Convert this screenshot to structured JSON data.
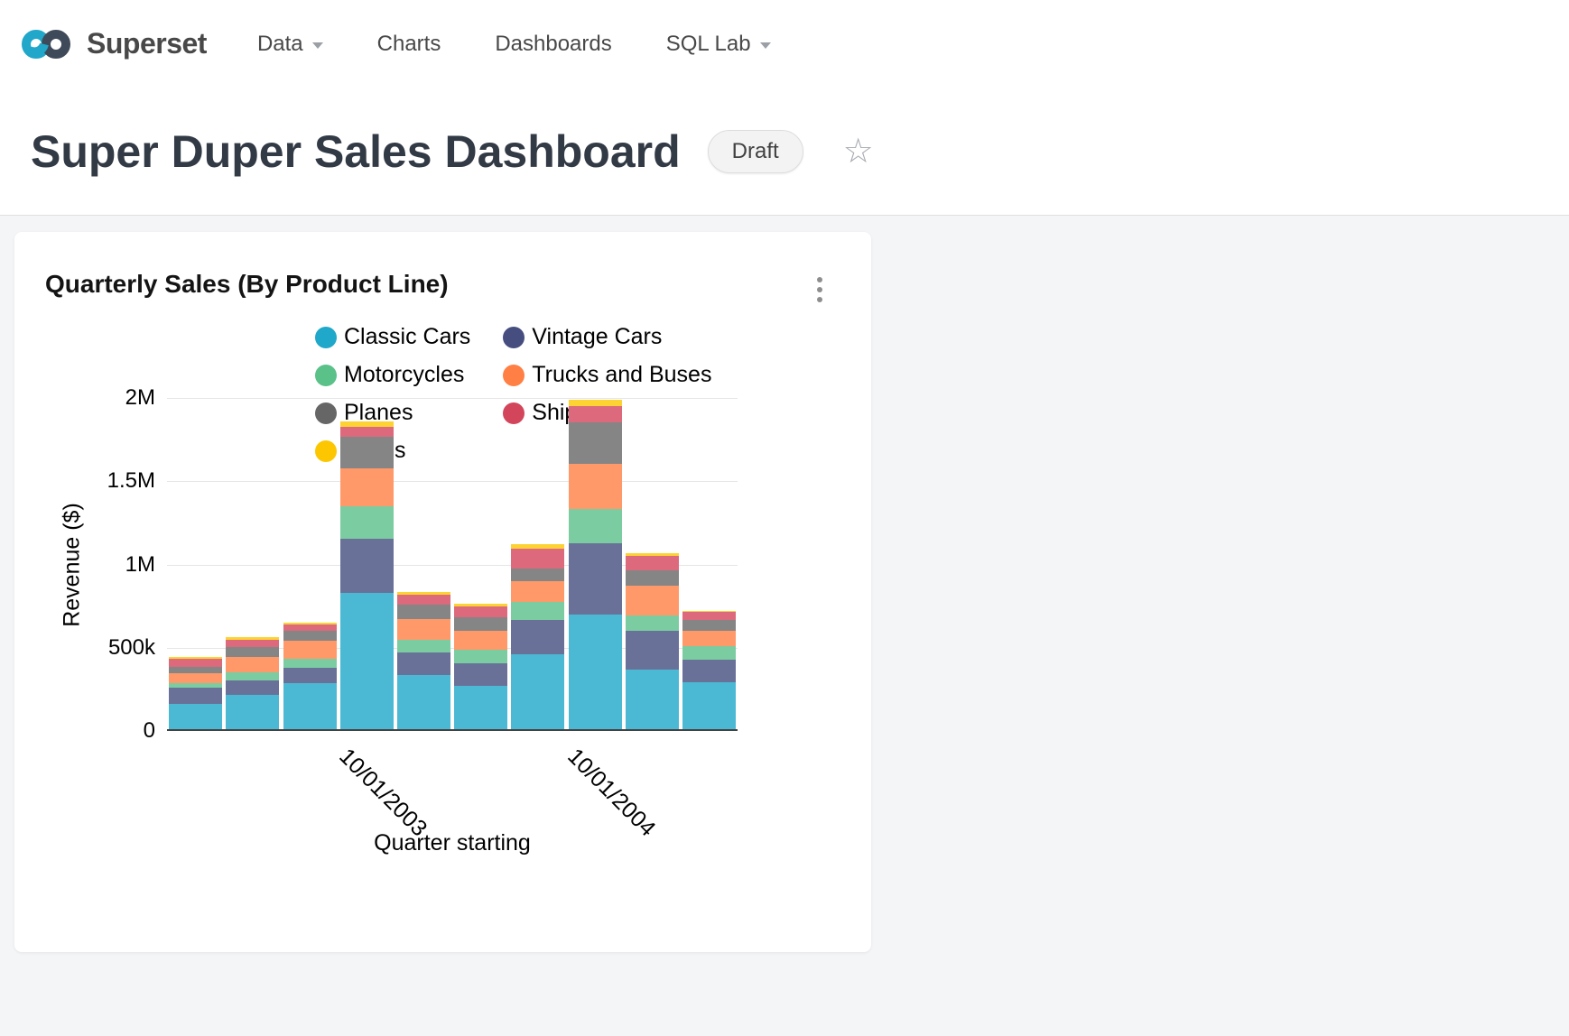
{
  "nav": {
    "brand": "Superset",
    "items": [
      {
        "label": "Data",
        "caret": true
      },
      {
        "label": "Charts",
        "caret": false
      },
      {
        "label": "Dashboards",
        "caret": false
      },
      {
        "label": "SQL Lab",
        "caret": true
      }
    ]
  },
  "header": {
    "title": "Super Duper Sales Dashboard",
    "badge": "Draft"
  },
  "card": {
    "title": "Quarterly Sales (By Product Line)"
  },
  "chart_data": {
    "type": "bar",
    "stacked": true,
    "title": "Quarterly Sales (By Product Line)",
    "xlabel": "Quarter starting",
    "ylabel": "Revenue ($)",
    "ylim": [
      0,
      2000000
    ],
    "grid": true,
    "legend_position": "top",
    "y_ticks": [
      {
        "value": 0,
        "label": "0"
      },
      {
        "value": 500000,
        "label": "500k"
      },
      {
        "value": 1000000,
        "label": "1M"
      },
      {
        "value": 1500000,
        "label": "1.5M"
      },
      {
        "value": 2000000,
        "label": "2M"
      }
    ],
    "categories": [
      "",
      "",
      "",
      "10/01/2003",
      "",
      "",
      "",
      "10/01/2004",
      "",
      ""
    ],
    "series": [
      {
        "name": "Classic Cars",
        "color": "#1FA8C9",
        "values": [
          162000,
          219000,
          286000,
          832000,
          335000,
          271000,
          460000,
          698000,
          370000,
          295000
        ]
      },
      {
        "name": "Vintage Cars",
        "color": "#454E7E",
        "values": [
          97000,
          87000,
          95000,
          325000,
          136000,
          134000,
          205000,
          432000,
          231000,
          131000
        ]
      },
      {
        "name": "Motorcycles",
        "color": "#5AC189",
        "values": [
          27000,
          46000,
          55000,
          191000,
          75000,
          84000,
          110000,
          202000,
          93000,
          86000
        ]
      },
      {
        "name": "Trucks and Buses",
        "color": "#FF7F44",
        "values": [
          59000,
          95000,
          105000,
          230000,
          126000,
          112000,
          123000,
          271000,
          180000,
          92000
        ]
      },
      {
        "name": "Planes",
        "color": "#666666",
        "values": [
          42000,
          55000,
          60000,
          188000,
          86000,
          81000,
          79000,
          250000,
          90000,
          61000
        ]
      },
      {
        "name": "Ships",
        "color": "#D3455B",
        "values": [
          48000,
          48000,
          39000,
          63000,
          59000,
          68000,
          120000,
          101000,
          87000,
          49000
        ]
      },
      {
        "name": "Trains",
        "color": "#FCC700",
        "values": [
          10000,
          12000,
          9000,
          31000,
          16000,
          16000,
          23000,
          36000,
          15000,
          5000
        ]
      }
    ]
  }
}
